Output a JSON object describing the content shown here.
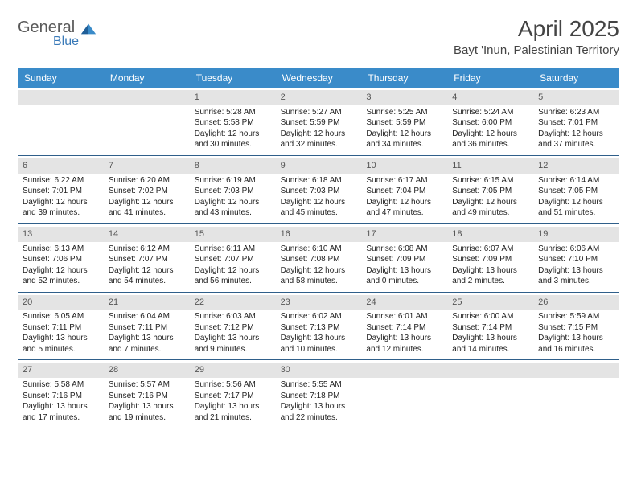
{
  "brand": {
    "word1": "General",
    "word2": "Blue"
  },
  "title": "April 2025",
  "location": "Bayt 'Inun, Palestinian Territory",
  "colors": {
    "header_bg": "#3a8bc9",
    "header_text": "#ffffff",
    "daynum_bg": "#e4e4e4",
    "row_border": "#2f5f8a",
    "brand_gray": "#5a5a5a",
    "brand_blue": "#3a7ab8"
  },
  "weekdays": [
    "Sunday",
    "Monday",
    "Tuesday",
    "Wednesday",
    "Thursday",
    "Friday",
    "Saturday"
  ],
  "weeks": [
    [
      {
        "n": "",
        "sr": "",
        "ss": "",
        "dl": ""
      },
      {
        "n": "",
        "sr": "",
        "ss": "",
        "dl": ""
      },
      {
        "n": "1",
        "sr": "Sunrise: 5:28 AM",
        "ss": "Sunset: 5:58 PM",
        "dl": "Daylight: 12 hours and 30 minutes."
      },
      {
        "n": "2",
        "sr": "Sunrise: 5:27 AM",
        "ss": "Sunset: 5:59 PM",
        "dl": "Daylight: 12 hours and 32 minutes."
      },
      {
        "n": "3",
        "sr": "Sunrise: 5:25 AM",
        "ss": "Sunset: 5:59 PM",
        "dl": "Daylight: 12 hours and 34 minutes."
      },
      {
        "n": "4",
        "sr": "Sunrise: 5:24 AM",
        "ss": "Sunset: 6:00 PM",
        "dl": "Daylight: 12 hours and 36 minutes."
      },
      {
        "n": "5",
        "sr": "Sunrise: 6:23 AM",
        "ss": "Sunset: 7:01 PM",
        "dl": "Daylight: 12 hours and 37 minutes."
      }
    ],
    [
      {
        "n": "6",
        "sr": "Sunrise: 6:22 AM",
        "ss": "Sunset: 7:01 PM",
        "dl": "Daylight: 12 hours and 39 minutes."
      },
      {
        "n": "7",
        "sr": "Sunrise: 6:20 AM",
        "ss": "Sunset: 7:02 PM",
        "dl": "Daylight: 12 hours and 41 minutes."
      },
      {
        "n": "8",
        "sr": "Sunrise: 6:19 AM",
        "ss": "Sunset: 7:03 PM",
        "dl": "Daylight: 12 hours and 43 minutes."
      },
      {
        "n": "9",
        "sr": "Sunrise: 6:18 AM",
        "ss": "Sunset: 7:03 PM",
        "dl": "Daylight: 12 hours and 45 minutes."
      },
      {
        "n": "10",
        "sr": "Sunrise: 6:17 AM",
        "ss": "Sunset: 7:04 PM",
        "dl": "Daylight: 12 hours and 47 minutes."
      },
      {
        "n": "11",
        "sr": "Sunrise: 6:15 AM",
        "ss": "Sunset: 7:05 PM",
        "dl": "Daylight: 12 hours and 49 minutes."
      },
      {
        "n": "12",
        "sr": "Sunrise: 6:14 AM",
        "ss": "Sunset: 7:05 PM",
        "dl": "Daylight: 12 hours and 51 minutes."
      }
    ],
    [
      {
        "n": "13",
        "sr": "Sunrise: 6:13 AM",
        "ss": "Sunset: 7:06 PM",
        "dl": "Daylight: 12 hours and 52 minutes."
      },
      {
        "n": "14",
        "sr": "Sunrise: 6:12 AM",
        "ss": "Sunset: 7:07 PM",
        "dl": "Daylight: 12 hours and 54 minutes."
      },
      {
        "n": "15",
        "sr": "Sunrise: 6:11 AM",
        "ss": "Sunset: 7:07 PM",
        "dl": "Daylight: 12 hours and 56 minutes."
      },
      {
        "n": "16",
        "sr": "Sunrise: 6:10 AM",
        "ss": "Sunset: 7:08 PM",
        "dl": "Daylight: 12 hours and 58 minutes."
      },
      {
        "n": "17",
        "sr": "Sunrise: 6:08 AM",
        "ss": "Sunset: 7:09 PM",
        "dl": "Daylight: 13 hours and 0 minutes."
      },
      {
        "n": "18",
        "sr": "Sunrise: 6:07 AM",
        "ss": "Sunset: 7:09 PM",
        "dl": "Daylight: 13 hours and 2 minutes."
      },
      {
        "n": "19",
        "sr": "Sunrise: 6:06 AM",
        "ss": "Sunset: 7:10 PM",
        "dl": "Daylight: 13 hours and 3 minutes."
      }
    ],
    [
      {
        "n": "20",
        "sr": "Sunrise: 6:05 AM",
        "ss": "Sunset: 7:11 PM",
        "dl": "Daylight: 13 hours and 5 minutes."
      },
      {
        "n": "21",
        "sr": "Sunrise: 6:04 AM",
        "ss": "Sunset: 7:11 PM",
        "dl": "Daylight: 13 hours and 7 minutes."
      },
      {
        "n": "22",
        "sr": "Sunrise: 6:03 AM",
        "ss": "Sunset: 7:12 PM",
        "dl": "Daylight: 13 hours and 9 minutes."
      },
      {
        "n": "23",
        "sr": "Sunrise: 6:02 AM",
        "ss": "Sunset: 7:13 PM",
        "dl": "Daylight: 13 hours and 10 minutes."
      },
      {
        "n": "24",
        "sr": "Sunrise: 6:01 AM",
        "ss": "Sunset: 7:14 PM",
        "dl": "Daylight: 13 hours and 12 minutes."
      },
      {
        "n": "25",
        "sr": "Sunrise: 6:00 AM",
        "ss": "Sunset: 7:14 PM",
        "dl": "Daylight: 13 hours and 14 minutes."
      },
      {
        "n": "26",
        "sr": "Sunrise: 5:59 AM",
        "ss": "Sunset: 7:15 PM",
        "dl": "Daylight: 13 hours and 16 minutes."
      }
    ],
    [
      {
        "n": "27",
        "sr": "Sunrise: 5:58 AM",
        "ss": "Sunset: 7:16 PM",
        "dl": "Daylight: 13 hours and 17 minutes."
      },
      {
        "n": "28",
        "sr": "Sunrise: 5:57 AM",
        "ss": "Sunset: 7:16 PM",
        "dl": "Daylight: 13 hours and 19 minutes."
      },
      {
        "n": "29",
        "sr": "Sunrise: 5:56 AM",
        "ss": "Sunset: 7:17 PM",
        "dl": "Daylight: 13 hours and 21 minutes."
      },
      {
        "n": "30",
        "sr": "Sunrise: 5:55 AM",
        "ss": "Sunset: 7:18 PM",
        "dl": "Daylight: 13 hours and 22 minutes."
      },
      {
        "n": "",
        "sr": "",
        "ss": "",
        "dl": ""
      },
      {
        "n": "",
        "sr": "",
        "ss": "",
        "dl": ""
      },
      {
        "n": "",
        "sr": "",
        "ss": "",
        "dl": ""
      }
    ]
  ]
}
